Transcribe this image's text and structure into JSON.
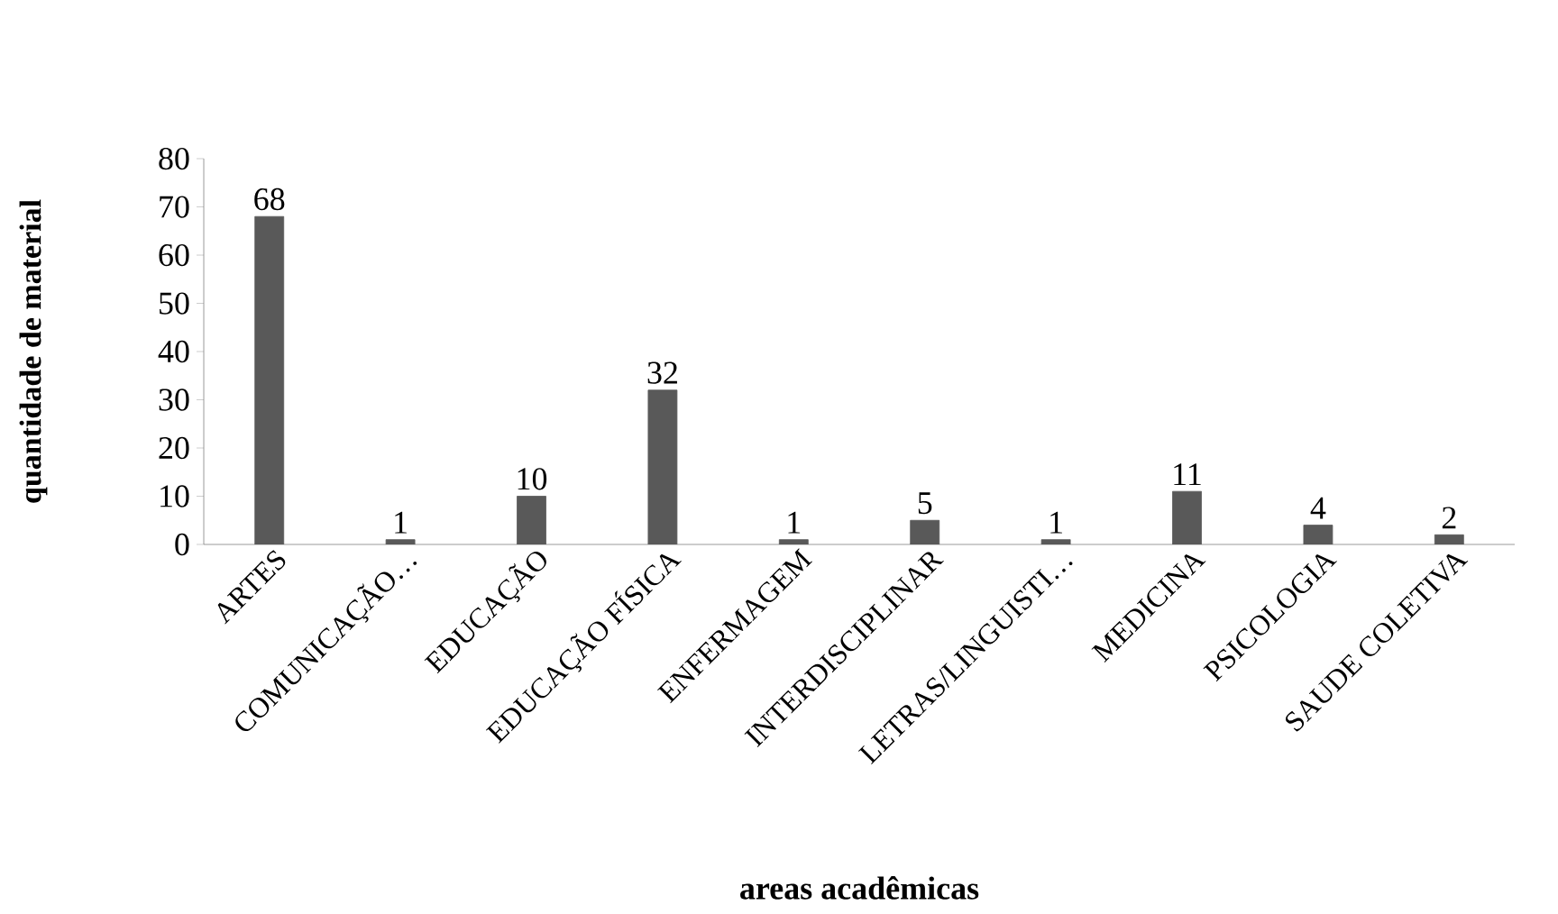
{
  "chart_data": {
    "type": "bar",
    "xlabel": "areas acadêmicas",
    "ylabel": "quantidade de material",
    "categories": [
      "ARTES",
      "COMUNICAÇÃO…",
      "EDUCAÇÃO",
      "EDUCAÇÃO FÍSICA",
      "ENFERMAGEM",
      "INTERDISCIPLINAR",
      "LETRAS/LINGUISTI…",
      "MEDICINA",
      "PSICOLOGIA",
      "SAUDE COLETIVA"
    ],
    "values": [
      68,
      1,
      10,
      32,
      1,
      5,
      1,
      11,
      4,
      2
    ],
    "color": "#595959",
    "ylim": [
      0,
      80
    ],
    "yticks": [
      0,
      10,
      20,
      30,
      40,
      50,
      60,
      70,
      80
    ],
    "data_labels": true
  }
}
